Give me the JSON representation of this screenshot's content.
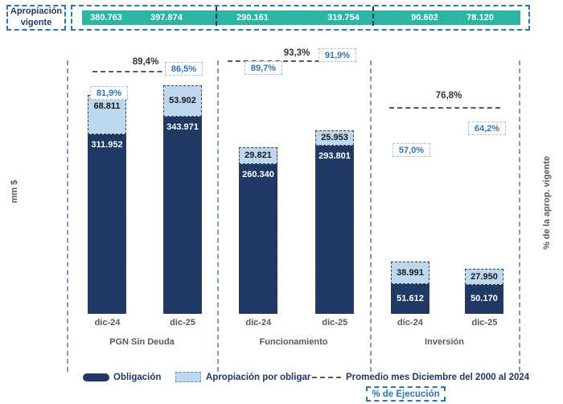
{
  "banner": {
    "title": "Apropiación vigente"
  },
  "axes": {
    "left_label": "mm $",
    "right_label": "%  de la aprop. vigente"
  },
  "legend": {
    "obligacion": "Obligación",
    "por_obligar": "Apropiación por obligar",
    "promedio": "Promedio mes Diciembre del 2000 al 2024",
    "pct_ejecucion": "% de Ejecución"
  },
  "colors": {
    "teal": "#2BB5A5",
    "navy": "#1F3864",
    "light_blue": "#BDD7EE",
    "blue_text": "#2E74B5",
    "gray_text": "#595959",
    "separator_blue": "#8496C8",
    "banner_border": "#2E74B5"
  },
  "chart_data": {
    "type": "bar",
    "stacked": true,
    "ylabel": "mm $",
    "ylabel_right": "% de la aprop. vigente",
    "series": [
      "Obligación",
      "Apropiación por obligar"
    ],
    "x_categories": [
      "dic-24",
      "dic-25"
    ],
    "legend_dashed_line": "Promedio mes Diciembre del 2000 al 2024",
    "groups": [
      {
        "label": "PGN Sin Deuda",
        "promedio_pct": "89,4%",
        "bars": [
          {
            "x": "dic-24",
            "apropiacion_vigente": 380.763,
            "apropiacion_vigente_display": "380.763",
            "obligacion": 311.952,
            "obligacion_display": "311.952",
            "por_obligar": 68.811,
            "por_obligar_display": "68.811",
            "pct_ejecucion": "81,9%"
          },
          {
            "x": "dic-25",
            "apropiacion_vigente": 397.874,
            "apropiacion_vigente_display": "397.874",
            "obligacion": 343.971,
            "obligacion_display": "343.971",
            "por_obligar": 53.902,
            "por_obligar_display": "53.902",
            "pct_ejecucion": "86,5%"
          }
        ]
      },
      {
        "label": "Funcionamiento",
        "promedio_pct": "93,3%",
        "bars": [
          {
            "x": "dic-24",
            "apropiacion_vigente": 290.161,
            "apropiacion_vigente_display": "290.161",
            "obligacion": 260.34,
            "obligacion_display": "260.340",
            "por_obligar": 29.821,
            "por_obligar_display": "29.821",
            "pct_ejecucion": "89,7%"
          },
          {
            "x": "dic-25",
            "apropiacion_vigente": 319.754,
            "apropiacion_vigente_display": "319.754",
            "obligacion": 293.801,
            "obligacion_display": "293.801",
            "por_obligar": 25.953,
            "por_obligar_display": "25.953",
            "pct_ejecucion": "91,9%"
          }
        ]
      },
      {
        "label": "Inversión",
        "promedio_pct": "76,8%",
        "bars": [
          {
            "x": "dic-24",
            "apropiacion_vigente": 90.602,
            "apropiacion_vigente_display": "90.602",
            "obligacion": 51.612,
            "obligacion_display": "51.612",
            "por_obligar": 38.991,
            "por_obligar_display": "38.991",
            "pct_ejecucion": "57,0%"
          },
          {
            "x": "dic-25",
            "apropiacion_vigente": 78.12,
            "apropiacion_vigente_display": "78.120",
            "obligacion": 50.17,
            "obligacion_display": "50.170",
            "por_obligar": 27.95,
            "por_obligar_display": "27.950",
            "pct_ejecucion": "64,2%"
          }
        ]
      }
    ]
  }
}
